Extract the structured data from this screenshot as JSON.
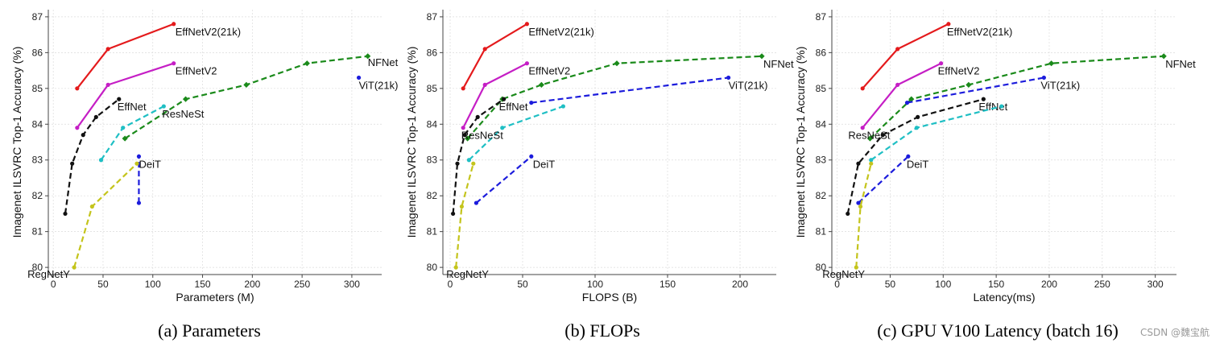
{
  "watermark": "CSDN @魏宝航",
  "chart_data": [
    {
      "type": "line",
      "caption": "(a) Parameters",
      "xlabel": "Parameters (M)",
      "ylabel": "Imagenet ILSVRC Top-1 Accuracy (%)",
      "xlim": [
        -5,
        330
      ],
      "ylim": [
        79.8,
        87.2
      ],
      "xticks": [
        0,
        50,
        100,
        150,
        200,
        250,
        300
      ],
      "yticks": [
        80,
        81,
        82,
        83,
        84,
        85,
        86,
        87
      ],
      "grid": true,
      "series": [
        {
          "name": "EffNetV2(21k)",
          "color": "#e41a1c",
          "dash": false,
          "marker": "circle",
          "x": [
            24,
            55,
            121
          ],
          "y": [
            85.0,
            86.1,
            86.8
          ]
        },
        {
          "name": "EffNetV2",
          "color": "#c51ec5",
          "dash": false,
          "marker": "circle",
          "x": [
            24,
            55,
            121
          ],
          "y": [
            83.9,
            85.1,
            85.7
          ]
        },
        {
          "name": "NFNet",
          "color": "#1a8a1a",
          "dash": true,
          "marker": "diamond",
          "x": [
            72,
            133,
            194,
            255,
            316
          ],
          "y": [
            83.6,
            84.7,
            85.1,
            85.7,
            85.9
          ]
        },
        {
          "name": "EffNet",
          "color": "#111111",
          "dash": true,
          "marker": "circle",
          "x": [
            12,
            19,
            30,
            43,
            66
          ],
          "y": [
            81.5,
            82.9,
            83.7,
            84.2,
            84.7
          ]
        },
        {
          "name": "ResNeSt",
          "color": "#1fbfc4",
          "dash": true,
          "marker": "circle",
          "x": [
            48,
            70,
            111
          ],
          "y": [
            83.0,
            83.9,
            84.5
          ]
        },
        {
          "name": "ViT(21k)",
          "color": "#1c1cdc",
          "dash": true,
          "marker": "circle",
          "x": [
            307
          ],
          "y": [
            85.3
          ]
        },
        {
          "name": "DeiT",
          "color": "#1c1cdc",
          "dash": true,
          "marker": "circle",
          "x": [
            86,
            86
          ],
          "y": [
            81.8,
            83.1
          ]
        },
        {
          "name": "RegNetY",
          "color": "#c4c41c",
          "dash": true,
          "marker": "circle",
          "x": [
            21,
            39,
            84
          ],
          "y": [
            80.0,
            81.7,
            82.9
          ]
        }
      ]
    },
    {
      "type": "line",
      "caption": "(b) FLOPs",
      "xlabel": "FLOPS (B)",
      "ylabel": "Imagenet ILSVRC Top-1 Accuracy (%)",
      "xlim": [
        -5,
        225
      ],
      "ylim": [
        79.8,
        87.2
      ],
      "xticks": [
        0,
        50,
        100,
        150,
        200
      ],
      "yticks": [
        80,
        81,
        82,
        83,
        84,
        85,
        86,
        87
      ],
      "grid": true,
      "series": [
        {
          "name": "EffNetV2(21k)",
          "color": "#e41a1c",
          "dash": false,
          "marker": "circle",
          "x": [
            9,
            24,
            53
          ],
          "y": [
            85.0,
            86.1,
            86.8
          ]
        },
        {
          "name": "EffNetV2",
          "color": "#c51ec5",
          "dash": false,
          "marker": "circle",
          "x": [
            9,
            24,
            53
          ],
          "y": [
            83.9,
            85.1,
            85.7
          ]
        },
        {
          "name": "NFNet",
          "color": "#1a8a1a",
          "dash": true,
          "marker": "diamond",
          "x": [
            12,
            36,
            63,
            115,
            215
          ],
          "y": [
            83.6,
            84.7,
            85.1,
            85.7,
            85.9
          ]
        },
        {
          "name": "EffNet",
          "color": "#111111",
          "dash": true,
          "marker": "circle",
          "x": [
            2,
            5,
            10,
            19,
            37
          ],
          "y": [
            81.5,
            82.9,
            83.7,
            84.2,
            84.7
          ]
        },
        {
          "name": "ResNeSt",
          "color": "#1fbfc4",
          "dash": true,
          "marker": "circle",
          "x": [
            13,
            36,
            78
          ],
          "y": [
            83.0,
            83.9,
            84.5
          ]
        },
        {
          "name": "ViT(21k)",
          "color": "#1c1cdc",
          "dash": true,
          "marker": "circle",
          "x": [
            56,
            192
          ],
          "y": [
            84.6,
            85.3
          ]
        },
        {
          "name": "DeiT",
          "color": "#1c1cdc",
          "dash": true,
          "marker": "circle",
          "x": [
            18,
            56
          ],
          "y": [
            81.8,
            83.1
          ]
        },
        {
          "name": "RegNetY",
          "color": "#c4c41c",
          "dash": true,
          "marker": "circle",
          "x": [
            4,
            8,
            16
          ],
          "y": [
            80.0,
            81.7,
            82.9
          ]
        }
      ]
    },
    {
      "type": "line",
      "caption": "(c) GPU V100 Latency (batch 16)",
      "xlabel": "Latency(ms)",
      "ylabel": "Imagenet ILSVRC Top-1 Accuracy (%)",
      "xlim": [
        -5,
        320
      ],
      "ylim": [
        79.8,
        87.2
      ],
      "xticks": [
        0,
        50,
        100,
        150,
        200,
        250,
        300
      ],
      "yticks": [
        80,
        81,
        82,
        83,
        84,
        85,
        86,
        87
      ],
      "grid": true,
      "series": [
        {
          "name": "EffNetV2(21k)",
          "color": "#e41a1c",
          "dash": false,
          "marker": "circle",
          "x": [
            24,
            57,
            105
          ],
          "y": [
            85.0,
            86.1,
            86.8
          ]
        },
        {
          "name": "EffNetV2",
          "color": "#c51ec5",
          "dash": false,
          "marker": "circle",
          "x": [
            24,
            57,
            98
          ],
          "y": [
            83.9,
            85.1,
            85.7
          ]
        },
        {
          "name": "NFNet",
          "color": "#1a8a1a",
          "dash": true,
          "marker": "diamond",
          "x": [
            31,
            70,
            124,
            202,
            308
          ],
          "y": [
            83.6,
            84.7,
            85.1,
            85.7,
            85.9
          ]
        },
        {
          "name": "EffNet",
          "color": "#111111",
          "dash": true,
          "marker": "circle",
          "x": [
            10,
            20,
            43,
            76,
            138
          ],
          "y": [
            81.5,
            82.9,
            83.7,
            84.2,
            84.7
          ]
        },
        {
          "name": "ResNeSt",
          "color": "#1fbfc4",
          "dash": true,
          "marker": "circle",
          "x": [
            32,
            75,
            155
          ],
          "y": [
            83.0,
            83.9,
            84.5
          ]
        },
        {
          "name": "ViT(21k)",
          "color": "#1c1cdc",
          "dash": true,
          "marker": "circle",
          "x": [
            66,
            195
          ],
          "y": [
            84.6,
            85.3
          ]
        },
        {
          "name": "DeiT",
          "color": "#1c1cdc",
          "dash": true,
          "marker": "circle",
          "x": [
            20,
            67
          ],
          "y": [
            81.8,
            83.1
          ]
        },
        {
          "name": "RegNetY",
          "color": "#c4c41c",
          "dash": true,
          "marker": "circle",
          "x": [
            18,
            22,
            32
          ],
          "y": [
            80.0,
            81.7,
            82.9
          ]
        }
      ]
    }
  ]
}
